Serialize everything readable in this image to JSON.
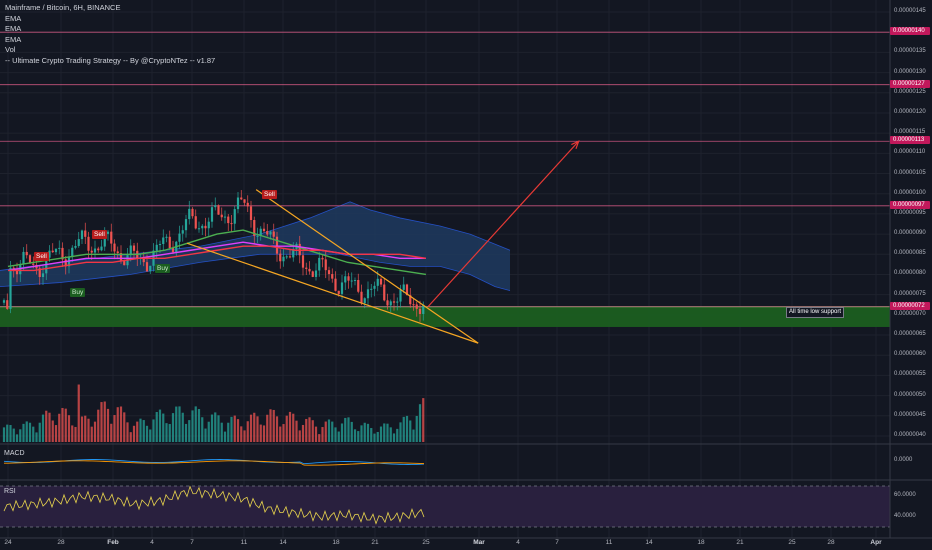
{
  "legend": {
    "title": "Mainframe / Bitcoin, 6H, BINANCE",
    "indicators": [
      "EMA",
      "EMA",
      "EMA",
      "Vol",
      "-- Ultimate Crypto Trading Strategy -- By @CryptoNTez -- v1.87"
    ]
  },
  "annotations": {
    "support_note": "All time low support",
    "signals": [
      {
        "text": "Sell",
        "kind": "sell",
        "date": "Jan 25"
      },
      {
        "text": "Buy",
        "kind": "buy",
        "date": "Jan 27"
      },
      {
        "text": "Sell",
        "kind": "sell",
        "date": "Jan 30"
      },
      {
        "text": "Buy",
        "kind": "buy",
        "date": "Feb 4"
      },
      {
        "text": "Sell",
        "kind": "sell",
        "date": "Feb 12"
      }
    ]
  },
  "panes": {
    "macd": "MACD",
    "rsi": "RSI"
  },
  "chart_data": {
    "type": "line",
    "title": "Mainframe / Bitcoin, 6H, BINANCE",
    "price_axis": {
      "ticks": [
        "0.00000145",
        "0.00000140",
        "0.00000135",
        "0.00000130",
        "0.00000125",
        "0.00000120",
        "0.00000115",
        "0.00000110",
        "0.00000105",
        "0.00000100",
        "0.00000095",
        "0.00000090",
        "0.00000085",
        "0.00000080",
        "0.00000075",
        "0.00000070",
        "0.00000065",
        "0.00000060",
        "0.00000055",
        "0.00000050",
        "0.00000045",
        "0.00000040"
      ],
      "ylim": [
        3.9e-07,
        1.465e-06
      ]
    },
    "horizontal_levels": [
      {
        "label": "0.00000140",
        "value": 1.4e-06
      },
      {
        "label": "0.00000127",
        "value": 1.27e-06
      },
      {
        "label": "0.00000113",
        "value": 1.13e-06
      },
      {
        "label": "0.00000097",
        "value": 9.7e-07
      },
      {
        "label": "0.00000072",
        "value": 7.2e-07
      }
    ],
    "support_zone": [
      6.7e-07,
      7.2e-07
    ],
    "x_axis": {
      "labels": [
        "24",
        "28",
        "Feb",
        "4",
        "7",
        "11",
        "14",
        "18",
        "21",
        "25",
        "Mar",
        "4",
        "7",
        "11",
        "14",
        "18",
        "21",
        "25",
        "28",
        "Apr"
      ],
      "major": [
        "Feb",
        "Mar",
        "Apr"
      ]
    },
    "price_series": {
      "name": "MFT/BTC",
      "dates": [
        "Jan 24",
        "Jan 26",
        "Jan 28",
        "Jan 30",
        "Feb 1",
        "Feb 3",
        "Feb 5",
        "Feb 7",
        "Feb 9",
        "Feb 11",
        "Feb 13",
        "Feb 15",
        "Feb 17",
        "Feb 19",
        "Feb 21",
        "Feb 23",
        "Feb 25"
      ],
      "values": [
        8.3e-07,
        8.2e-07,
        8.5e-07,
        8.8e-07,
        8.7e-07,
        8.3e-07,
        8.7e-07,
        9.3e-07,
        9.4e-07,
        9.7e-07,
        8.8e-07,
        8.4e-07,
        8.1e-07,
        7.7e-07,
        7.6e-07,
        7.4e-07,
        7.3e-07
      ]
    },
    "ema_series": [
      {
        "values": [
          8.2e-07,
          8.3e-07,
          8.4e-07,
          8.5e-07,
          8.5e-07,
          8.5e-07,
          8.6e-07,
          8.8e-07,
          9e-07,
          9.1e-07,
          8.9e-07,
          8.7e-07,
          8.5e-07,
          8.3e-07,
          8.2e-07,
          8.1e-07,
          8e-07
        ],
        "color": "#4caf50"
      },
      {
        "values": [
          8.1e-07,
          8.2e-07,
          8.3e-07,
          8.4e-07,
          8.4e-07,
          8.4e-07,
          8.5e-07,
          8.6e-07,
          8.7e-07,
          8.8e-07,
          8.7e-07,
          8.7e-07,
          8.6e-07,
          8.5e-07,
          8.5e-07,
          8.4e-07,
          8.4e-07
        ],
        "color": "#e040fb"
      },
      {
        "values": [
          8.1e-07,
          8.1e-07,
          8.2e-07,
          8.3e-07,
          8.3e-07,
          8.4e-07,
          8.4e-07,
          8.5e-07,
          8.6e-07,
          8.7e-07,
          8.7e-07,
          8.6e-07,
          8.6e-07,
          8.5e-07,
          8.5e-07,
          8.5e-07,
          8.4e-07
        ],
        "color": "#f23645"
      }
    ],
    "falling_wedge": {
      "upper": [
        [
          "Feb 12",
          1.01e-06
        ],
        [
          "Mar 1",
          6.3e-07
        ]
      ],
      "lower": [
        [
          "Feb 9",
          8.8e-07
        ],
        [
          "Mar 1",
          6.3e-07
        ]
      ]
    },
    "projection_arrow": {
      "from": [
        "Feb 25",
        7.2e-07
      ],
      "to": [
        "Mar 9",
        1.13e-06
      ]
    },
    "volume": {
      "dates": [
        "Jan 24",
        "Jan 26",
        "Jan 28",
        "Jan 30",
        "Feb 1",
        "Feb 3",
        "Feb 5",
        "Feb 7",
        "Feb 9",
        "Feb 11",
        "Feb 13",
        "Feb 15",
        "Feb 17",
        "Feb 19",
        "Feb 21",
        "Feb 23",
        "Feb 25"
      ],
      "values": [
        0.2,
        0.25,
        0.45,
        0.3,
        0.55,
        0.25,
        0.4,
        0.45,
        0.35,
        0.3,
        0.4,
        0.35,
        0.25,
        0.3,
        0.2,
        0.25,
        0.55
      ]
    },
    "macd": {
      "tick": "0.0000"
    },
    "rsi": {
      "ticks": [
        "60.0000",
        "40.0000"
      ],
      "values": [
        50,
        52,
        55,
        60,
        58,
        52,
        56,
        65,
        62,
        58,
        48,
        44,
        40,
        42,
        38,
        40,
        45
      ]
    },
    "colors": {
      "up": "#26a69a",
      "down": "#ef5350",
      "wedge": "#f5a623",
      "arrow": "#e53935",
      "support": "#1b5e20",
      "cloud": "#1e3a5f",
      "level": "#f06292"
    }
  }
}
